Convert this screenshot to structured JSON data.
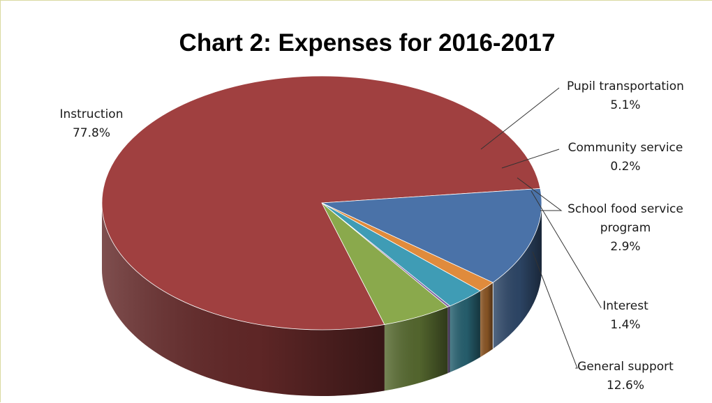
{
  "chart_data": {
    "type": "pie",
    "title": "Chart 2: Expenses for 2016-2017",
    "three_d": true,
    "legend": "none",
    "slices": [
      {
        "name": "Instruction",
        "value": 77.8,
        "label": "77.8%",
        "color": "#a04040"
      },
      {
        "name": "Pupil transportation",
        "value": 5.1,
        "label": "5.1%",
        "color": "#8aa94c"
      },
      {
        "name": "Community service",
        "value": 0.2,
        "label": "0.2%",
        "color": "#7f62a2"
      },
      {
        "name": "School food service program",
        "value": 2.9,
        "label": "2.9%",
        "color": "#3f9cb5"
      },
      {
        "name": "Interest",
        "value": 1.4,
        "label": "1.4%",
        "color": "#e08b3c"
      },
      {
        "name": "General support",
        "value": 12.6,
        "label": "12.6%",
        "color": "#4a72a8"
      }
    ]
  }
}
